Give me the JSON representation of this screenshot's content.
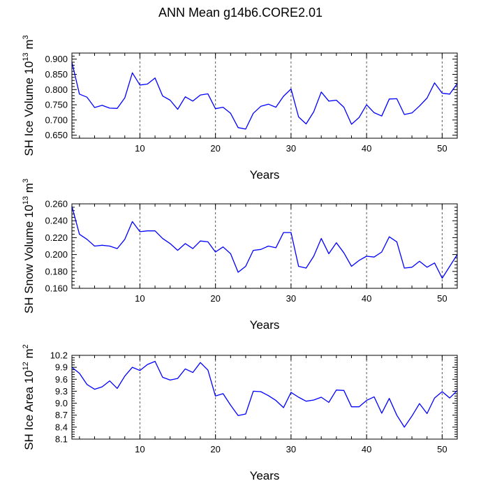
{
  "title": "ANN Mean g14b6.CORE2.01",
  "line_color": "#0000ff",
  "chart_data": [
    {
      "type": "line",
      "xlabel": "Years",
      "ylabel": {
        "base": "SH Ice Volume 10",
        "exp1": "13",
        "mid": " m",
        "exp2": "3"
      },
      "xlim": [
        1,
        52
      ],
      "ylim": [
        0.64,
        0.92
      ],
      "xticks": [
        10,
        20,
        30,
        40,
        50
      ],
      "yticks": [
        0.65,
        0.7,
        0.75,
        0.8,
        0.85,
        0.9
      ],
      "ytick_labels": [
        "0.650",
        "0.700",
        "0.750",
        "0.800",
        "0.850",
        "0.900"
      ],
      "x": [
        1,
        2,
        3,
        4,
        5,
        6,
        7,
        8,
        9,
        10,
        11,
        12,
        13,
        14,
        15,
        16,
        17,
        18,
        19,
        20,
        21,
        22,
        23,
        24,
        25,
        26,
        27,
        28,
        29,
        30,
        31,
        32,
        33,
        34,
        35,
        36,
        37,
        38,
        39,
        40,
        41,
        42,
        43,
        44,
        45,
        46,
        47,
        48,
        49,
        50,
        51,
        52
      ],
      "values": [
        0.89,
        0.785,
        0.775,
        0.741,
        0.748,
        0.739,
        0.738,
        0.773,
        0.855,
        0.815,
        0.818,
        0.838,
        0.779,
        0.765,
        0.735,
        0.776,
        0.762,
        0.782,
        0.786,
        0.737,
        0.742,
        0.722,
        0.675,
        0.67,
        0.722,
        0.745,
        0.752,
        0.742,
        0.778,
        0.802,
        0.71,
        0.687,
        0.727,
        0.792,
        0.762,
        0.765,
        0.742,
        0.686,
        0.708,
        0.75,
        0.724,
        0.713,
        0.769,
        0.77,
        0.718,
        0.723,
        0.746,
        0.772,
        0.822,
        0.788,
        0.785,
        0.82
      ]
    },
    {
      "type": "line",
      "xlabel": "Years",
      "ylabel": {
        "base": "SH Snow Volume 10",
        "exp1": "13",
        "mid": " m",
        "exp2": "3"
      },
      "xlim": [
        1,
        52
      ],
      "ylim": [
        0.16,
        0.26
      ],
      "xticks": [
        10,
        20,
        30,
        40,
        50
      ],
      "yticks": [
        0.16,
        0.18,
        0.2,
        0.22,
        0.24,
        0.26
      ],
      "ytick_labels": [
        "0.160",
        "0.180",
        "0.200",
        "0.220",
        "0.240",
        "0.260"
      ],
      "x": [
        1,
        2,
        3,
        4,
        5,
        6,
        7,
        8,
        9,
        10,
        11,
        12,
        13,
        14,
        15,
        16,
        17,
        18,
        19,
        20,
        21,
        22,
        23,
        24,
        25,
        26,
        27,
        28,
        29,
        30,
        31,
        32,
        33,
        34,
        35,
        36,
        37,
        38,
        39,
        40,
        41,
        42,
        43,
        44,
        45,
        46,
        47,
        48,
        49,
        50,
        51,
        52
      ],
      "values": [
        0.257,
        0.224,
        0.218,
        0.21,
        0.211,
        0.21,
        0.207,
        0.218,
        0.239,
        0.227,
        0.228,
        0.228,
        0.219,
        0.213,
        0.205,
        0.213,
        0.207,
        0.216,
        0.215,
        0.203,
        0.209,
        0.201,
        0.179,
        0.186,
        0.205,
        0.206,
        0.21,
        0.208,
        0.226,
        0.226,
        0.186,
        0.184,
        0.198,
        0.219,
        0.201,
        0.214,
        0.202,
        0.186,
        0.193,
        0.198,
        0.197,
        0.203,
        0.221,
        0.215,
        0.184,
        0.185,
        0.192,
        0.185,
        0.19,
        0.172,
        0.186,
        0.2
      ]
    },
    {
      "type": "line",
      "xlabel": "Years",
      "ylabel": {
        "base": "SH Ice Area 10",
        "exp1": "12",
        "mid": " m",
        "exp2": "2"
      },
      "xlim": [
        1,
        52
      ],
      "ylim": [
        8.1,
        10.2
      ],
      "xticks": [
        10,
        20,
        30,
        40,
        50
      ],
      "yticks": [
        8.1,
        8.4,
        8.7,
        9.0,
        9.3,
        9.6,
        9.9,
        10.2
      ],
      "ytick_labels": [
        "8.1",
        "8.4",
        "8.7",
        "9.0",
        "9.3",
        "9.6",
        "9.9",
        "10.2"
      ],
      "x": [
        1,
        2,
        3,
        4,
        5,
        6,
        7,
        8,
        9,
        10,
        11,
        12,
        13,
        14,
        15,
        16,
        17,
        18,
        19,
        20,
        21,
        22,
        23,
        24,
        25,
        26,
        27,
        28,
        29,
        30,
        31,
        32,
        33,
        34,
        35,
        36,
        37,
        38,
        39,
        40,
        41,
        42,
        43,
        44,
        45,
        46,
        47,
        48,
        49,
        50,
        51,
        52
      ],
      "values": [
        9.9,
        9.75,
        9.47,
        9.35,
        9.41,
        9.56,
        9.37,
        9.68,
        9.9,
        9.82,
        9.97,
        10.05,
        9.65,
        9.58,
        9.62,
        9.86,
        9.77,
        10.02,
        9.83,
        9.18,
        9.24,
        8.95,
        8.69,
        8.73,
        9.3,
        9.29,
        9.19,
        9.07,
        8.89,
        9.27,
        9.15,
        9.05,
        9.08,
        9.15,
        9.02,
        9.33,
        9.32,
        8.91,
        8.91,
        9.07,
        9.16,
        8.75,
        9.12,
        8.7,
        8.4,
        8.68,
        8.99,
        8.74,
        9.13,
        9.29,
        9.13,
        9.32
      ]
    }
  ]
}
